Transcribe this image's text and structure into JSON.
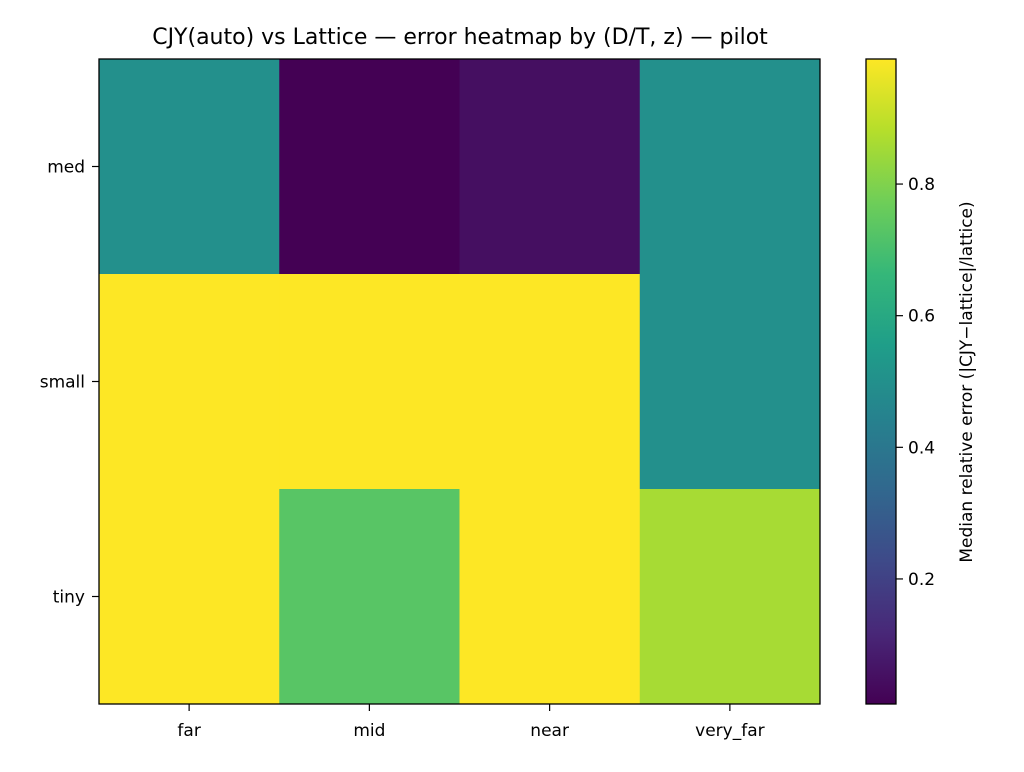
{
  "chart_data": {
    "type": "heatmap",
    "title": "CJY(auto) vs Lattice — error heatmap by (D/T, z) — pilot",
    "xlabel": "",
    "ylabel": "",
    "x_categories": [
      "far",
      "mid",
      "near",
      "very_far"
    ],
    "y_categories": [
      "med",
      "small",
      "tiny"
    ],
    "values": [
      [
        0.5,
        0.01,
        0.05,
        0.5
      ],
      [
        0.99,
        0.99,
        0.99,
        0.5
      ],
      [
        0.99,
        0.73,
        0.99,
        0.86
      ]
    ],
    "colorbar": {
      "label": "Median relative error (|CJY−lattice|/lattice)",
      "range": [
        0.01,
        0.99
      ],
      "ticks": [
        0.2,
        0.4,
        0.6,
        0.8
      ],
      "tick_labels": [
        "0.2",
        "0.4",
        "0.6",
        "0.8"
      ],
      "colormap": "viridis"
    },
    "grid": false
  }
}
